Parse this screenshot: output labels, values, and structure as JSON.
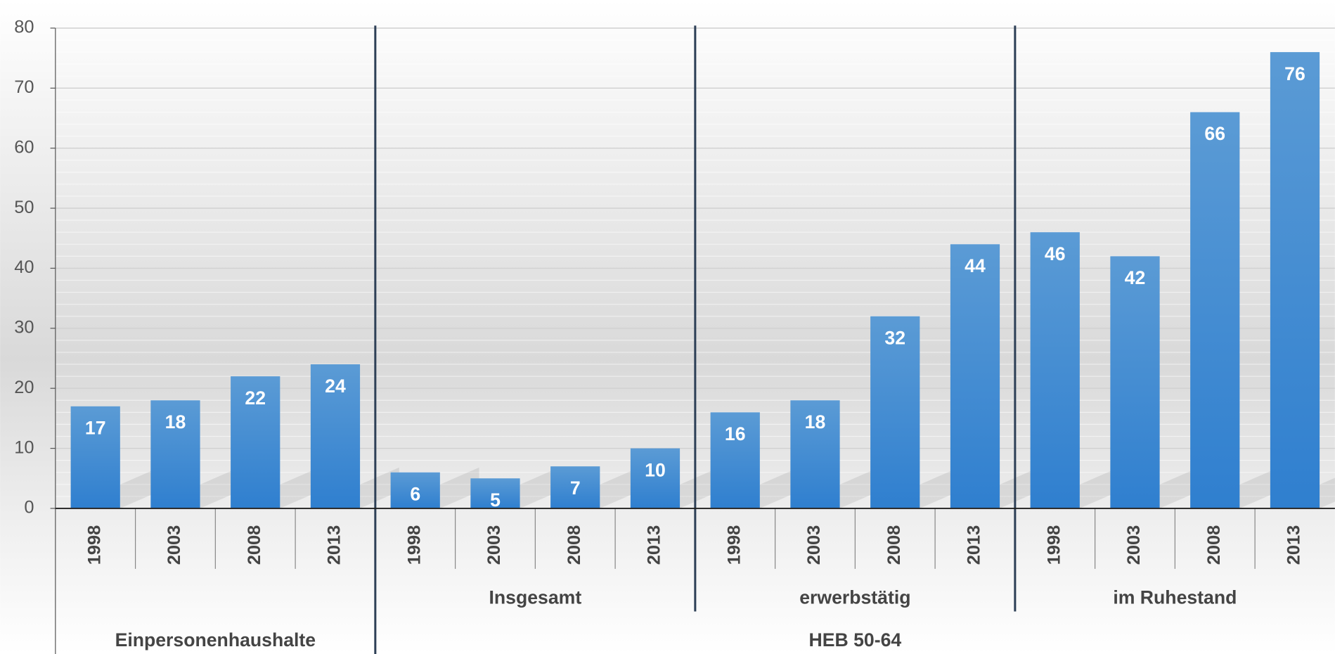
{
  "chart_data": {
    "type": "bar",
    "color": "#3d8ad6",
    "ylim": [
      0,
      80
    ],
    "yticks": [
      0,
      10,
      20,
      30,
      40,
      50,
      60,
      70,
      80
    ],
    "grid": true,
    "groups": [
      {
        "name": "Einpersonenhaushalte",
        "subgroups": [
          {
            "name": null,
            "categories": [
              "1998",
              "2003",
              "2008",
              "2013"
            ],
            "values": [
              17,
              18,
              22,
              24
            ]
          }
        ]
      },
      {
        "name": "HEB 50-64",
        "subgroups": [
          {
            "name": "Insgesamt",
            "categories": [
              "1998",
              "2003",
              "2008",
              "2013"
            ],
            "values": [
              6,
              5,
              7,
              10
            ]
          },
          {
            "name": "erwerbstätig",
            "categories": [
              "1998",
              "2003",
              "2008",
              "2013"
            ],
            "values": [
              16,
              18,
              32,
              44
            ]
          },
          {
            "name": "im Ruhestand",
            "categories": [
              "1998",
              "2003",
              "2008",
              "2013"
            ],
            "values": [
              46,
              42,
              66,
              76
            ]
          }
        ]
      }
    ]
  }
}
